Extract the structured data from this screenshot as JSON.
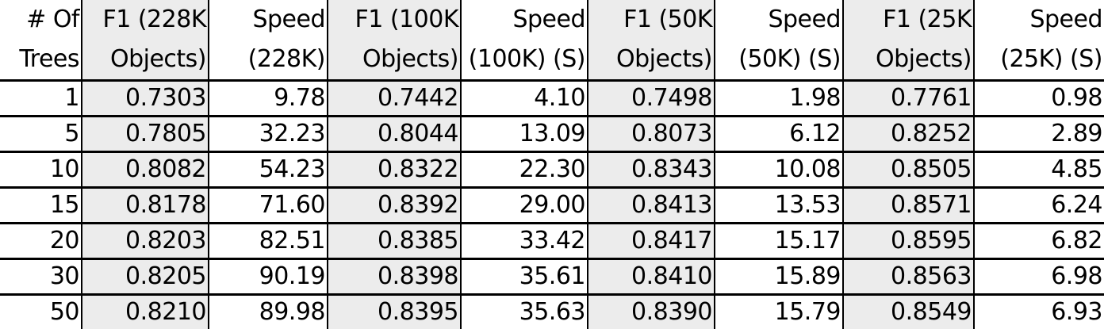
{
  "table": {
    "headers": [
      [
        "# Of",
        "Trees"
      ],
      [
        "F1 (228K",
        "Objects)"
      ],
      [
        "Speed",
        "(228K)"
      ],
      [
        "F1 (100K",
        "Objects)"
      ],
      [
        "Speed",
        "(100K) (S)"
      ],
      [
        "F1 (50K",
        "Objects)"
      ],
      [
        "Speed",
        "(50K) (S)"
      ],
      [
        "F1 (25K",
        "Objects)"
      ],
      [
        "Speed",
        "(25K) (S)"
      ]
    ],
    "rows": [
      [
        "1",
        "0.7303",
        "9.78",
        "0.7442",
        "4.10",
        "0.7498",
        "1.98",
        "0.7761",
        "0.98"
      ],
      [
        "5",
        "0.7805",
        "32.23",
        "0.8044",
        "13.09",
        "0.8073",
        "6.12",
        "0.8252",
        "2.89"
      ],
      [
        "10",
        "0.8082",
        "54.23",
        "0.8322",
        "22.30",
        "0.8343",
        "10.08",
        "0.8505",
        "4.85"
      ],
      [
        "15",
        "0.8178",
        "71.60",
        "0.8392",
        "29.00",
        "0.8413",
        "13.53",
        "0.8571",
        "6.24"
      ],
      [
        "20",
        "0.8203",
        "82.51",
        "0.8385",
        "33.42",
        "0.8417",
        "15.17",
        "0.8595",
        "6.82"
      ],
      [
        "30",
        "0.8205",
        "90.19",
        "0.8398",
        "35.61",
        "0.8410",
        "15.89",
        "0.8563",
        "6.98"
      ],
      [
        "50",
        "0.8210",
        "89.98",
        "0.8395",
        "35.63",
        "0.8390",
        "15.79",
        "0.8549",
        "6.93"
      ]
    ]
  },
  "colors": {
    "shaded_column": "#ececec",
    "rule": "#000000"
  }
}
